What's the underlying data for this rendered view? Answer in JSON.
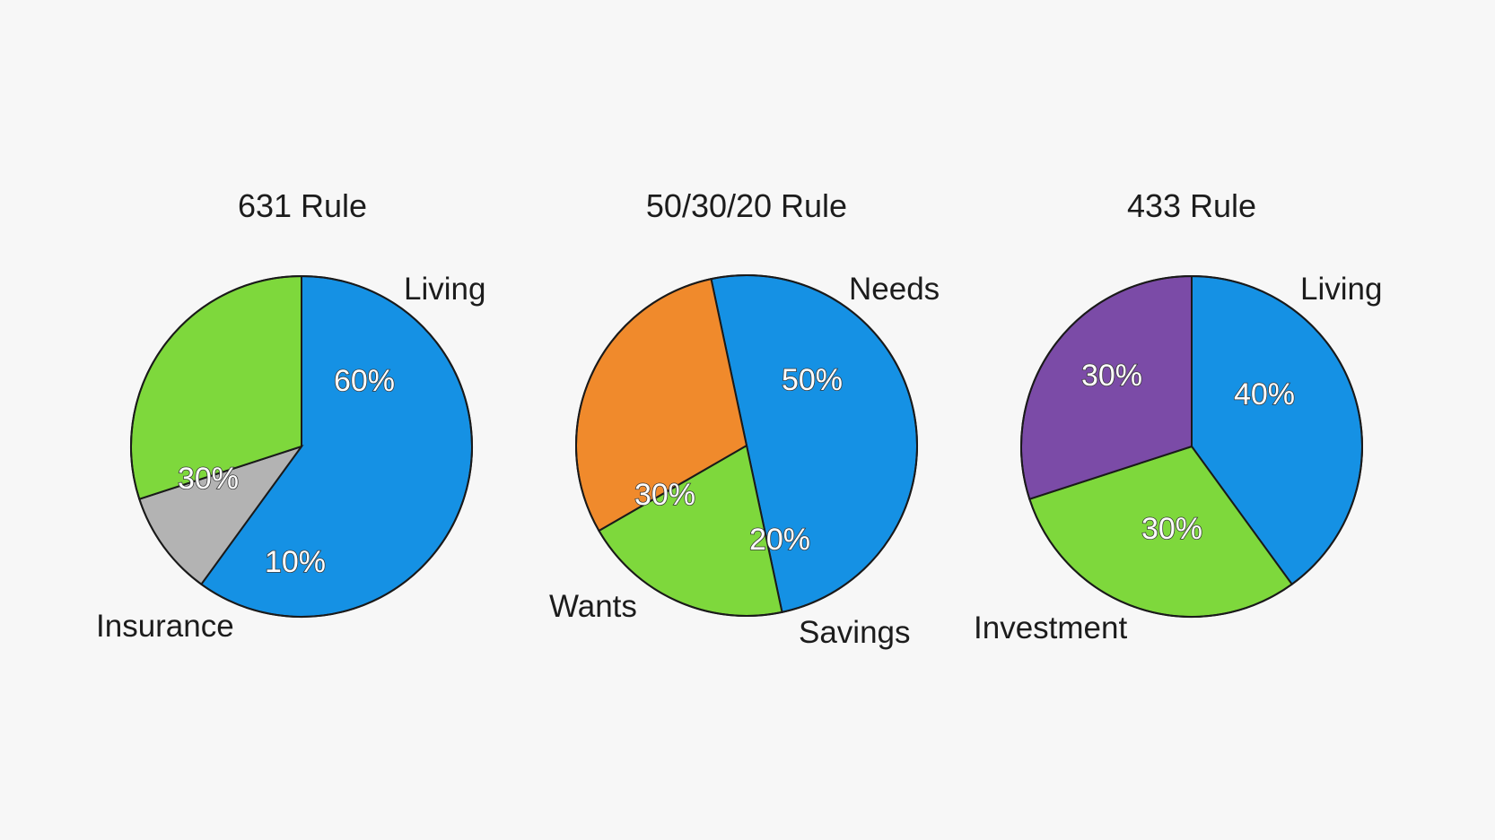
{
  "chart_data": [
    {
      "type": "pie",
      "title": "631 Rule",
      "slices": [
        {
          "value": 60,
          "label": "60%",
          "category": "Living",
          "color": "#1591e4"
        },
        {
          "value": 10,
          "label": "10%",
          "category": "",
          "color": "#b3b3b3"
        },
        {
          "value": 30,
          "label": "30%",
          "category": "Insurance",
          "color": "#7ed83c"
        }
      ],
      "category_labels": [
        "Living",
        "Insurance"
      ]
    },
    {
      "type": "pie",
      "title": "50/30/20 Rule",
      "slices": [
        {
          "value": 50,
          "label": "50%",
          "category": "Needs",
          "color": "#1591e4"
        },
        {
          "value": 20,
          "label": "20%",
          "category": "Savings",
          "color": "#7ed83c"
        },
        {
          "value": 30,
          "label": "30%",
          "category": "Wants",
          "color": "#f08a2c"
        }
      ],
      "category_labels": [
        "Needs",
        "Wants",
        "Savings"
      ]
    },
    {
      "type": "pie",
      "title": "433 Rule",
      "slices": [
        {
          "value": 40,
          "label": "40%",
          "category": "Living",
          "color": "#1591e4"
        },
        {
          "value": 30,
          "label": "30%",
          "category": "Investment",
          "color": "#7ed83c"
        },
        {
          "value": 30,
          "label": "30%",
          "category": "",
          "color": "#7b4ba7"
        }
      ],
      "category_labels": [
        "Living",
        "Investment"
      ]
    }
  ]
}
